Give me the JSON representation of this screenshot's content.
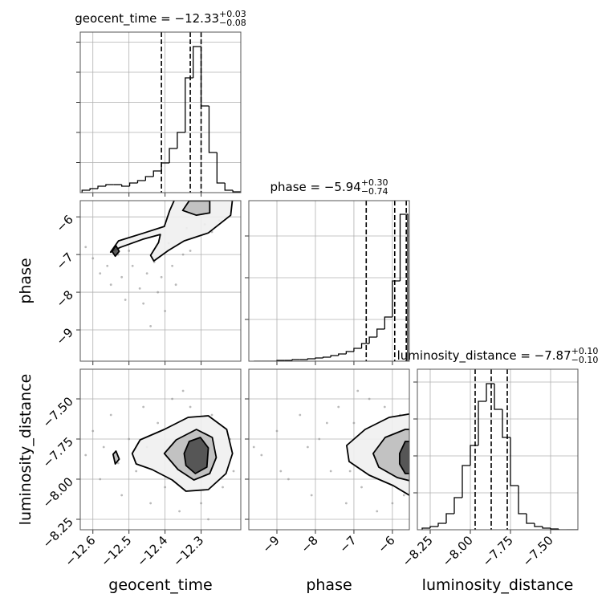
{
  "chart_data": [
    {
      "type": "histogram",
      "title": {
        "text": "geocent_time = −12.33",
        "upper": "+0.03",
        "lower": "−0.08"
      },
      "bins": [
        -12.63,
        -12.608,
        -12.586,
        -12.564,
        -12.542,
        -12.52,
        -12.498,
        -12.476,
        -12.454,
        -12.432,
        -12.41,
        -12.388,
        -12.366,
        -12.344,
        -12.322,
        -12.3,
        -12.278,
        -12.256,
        -12.234,
        -12.212,
        -12.19
      ],
      "values": [
        3,
        5,
        8,
        10,
        10,
        8,
        12,
        15,
        20,
        27,
        37,
        55,
        75,
        143,
        182,
        108,
        50,
        12,
        3,
        1
      ],
      "quantiles": [
        -12.41,
        -12.33,
        -12.3
      ],
      "xlim": [
        -12.635,
        -12.19
      ],
      "xticks": [
        -12.6,
        -12.5,
        -12.4,
        -12.3
      ],
      "ylim": [
        0,
        200
      ],
      "yticks": [
        37.5,
        75,
        112.5,
        150,
        187.5
      ],
      "grid": true,
      "color": "#000000"
    },
    {
      "type": "scatter",
      "ylabel": "phase",
      "points": {
        "x": [
          -12.6,
          -12.58,
          -12.56,
          -12.55,
          -12.53,
          -12.52,
          -12.5,
          -12.49,
          -12.47,
          -12.46,
          -12.45,
          -12.43,
          -12.42,
          -12.41,
          -12.4,
          -12.38,
          -12.37,
          -12.35,
          -12.33,
          -12.31,
          -12.29,
          -12.27,
          -12.25,
          -12.62,
          -12.44,
          -12.39,
          -12.34,
          -12.51
        ],
        "y": [
          -7.1,
          -7.5,
          -7.3,
          -7.8,
          -7.0,
          -7.6,
          -6.9,
          -7.3,
          -7.9,
          -8.3,
          -7.5,
          -7.2,
          -8.0,
          -7.6,
          -8.5,
          -7.3,
          -7.8,
          -7.0,
          -6.9,
          -6.5,
          -6.2,
          -6.4,
          -6.1,
          -6.8,
          -8.9,
          -6.7,
          -6.3,
          -8.2
        ]
      },
      "contours": [
        {
          "x": [
            -12.551,
            -12.529,
            -12.458,
            -12.402,
            -12.387,
            -12.373,
            -12.213,
            -12.218,
            -12.28,
            -12.347,
            -12.391,
            -12.431,
            -12.44,
            -12.418,
            -12.413,
            -12.462,
            -12.524
          ],
          "y": [
            -6.936,
            -6.638,
            -6.426,
            -6.255,
            -5.83,
            -5.532,
            -5.532,
            -5.957,
            -6.426,
            -6.638,
            -6.894,
            -7.17,
            -7.021,
            -6.681,
            -6.468,
            -6.596,
            -6.809
          ]
        },
        {
          "x": [
            -12.351,
            -12.333,
            -12.276,
            -12.276,
            -12.313
          ],
          "y": [
            -5.83,
            -5.574,
            -5.574,
            -5.894,
            -5.957
          ]
        },
        {
          "x": [
            -12.547,
            -12.536,
            -12.527,
            -12.538
          ],
          "y": [
            -6.915,
            -6.766,
            -6.915,
            -7.043
          ]
        }
      ],
      "xlim": [
        -12.635,
        -12.19
      ],
      "xticks": [
        -12.6,
        -12.5,
        -12.4,
        -12.3
      ],
      "ylim": [
        -9.83,
        -5.57
      ],
      "yticks": [
        {
          "value": -9,
          "label": "−9"
        },
        {
          "value": -8,
          "label": "−8"
        },
        {
          "value": -7,
          "label": "−7"
        },
        {
          "value": -6,
          "label": "−6"
        }
      ],
      "grid": true,
      "color": "#8c8c8c"
    },
    {
      "type": "histogram",
      "title": {
        "text": "phase = −5.94",
        "upper": "+0.30",
        "lower": "−0.74"
      },
      "bins": [
        -9.6,
        -9.4,
        -9.2,
        -9.0,
        -8.8,
        -8.6,
        -8.4,
        -8.2,
        -8.0,
        -7.8,
        -7.6,
        -7.4,
        -7.2,
        -7.0,
        -6.8,
        -6.6,
        -6.4,
        -6.2,
        -6.0,
        -5.8,
        -5.6
      ],
      "values": [
        0,
        0,
        0,
        1,
        1,
        2,
        2,
        3,
        4,
        5,
        7,
        9,
        12,
        16,
        22,
        30,
        40,
        55,
        100,
        183
      ],
      "quantiles": [
        -6.68,
        -5.94,
        -5.64
      ],
      "xlim": [
        -9.73,
        -5.56
      ],
      "xticks": [
        -9,
        -8,
        -7,
        -6
      ],
      "ylim": [
        0,
        200
      ],
      "yticks": [
        52,
        104,
        156
      ],
      "grid": true,
      "color": "#000000"
    },
    {
      "type": "scatter",
      "xlabel": "geocent_time",
      "ylabel": "luminosity_distance",
      "points": {
        "x": [
          -12.62,
          -12.6,
          -12.58,
          -12.55,
          -12.52,
          -12.5,
          -12.48,
          -12.46,
          -12.44,
          -12.42,
          -12.4,
          -12.38,
          -12.36,
          -12.33,
          -12.3,
          -12.27,
          -12.24,
          -12.22,
          -12.21,
          -12.57,
          -12.53,
          -12.45,
          -12.35,
          -12.28
        ],
        "y": [
          -7.85,
          -7.7,
          -8.0,
          -7.6,
          -8.1,
          -7.75,
          -7.95,
          -7.55,
          -8.15,
          -7.65,
          -8.05,
          -7.5,
          -8.2,
          -7.55,
          -8.15,
          -7.6,
          -8.05,
          -7.75,
          -7.95,
          -7.8,
          -7.9,
          -7.8,
          -7.45,
          -8.25
        ]
      },
      "contours": [
        {
          "x": [
            -12.491,
            -12.469,
            -12.402,
            -12.336,
            -12.28,
            -12.229,
            -12.213,
            -12.231,
            -12.28,
            -12.342,
            -12.38,
            -12.436,
            -12.48
          ],
          "y": [
            -7.84,
            -7.755,
            -7.69,
            -7.615,
            -7.605,
            -7.69,
            -7.84,
            -7.965,
            -8.065,
            -8.075,
            -8.005,
            -7.94,
            -7.905
          ]
        },
        {
          "x": [
            -12.402,
            -12.369,
            -12.313,
            -12.269,
            -12.258,
            -12.276,
            -12.32,
            -12.364
          ],
          "y": [
            -7.84,
            -7.755,
            -7.69,
            -7.74,
            -7.865,
            -7.965,
            -8.005,
            -7.94
          ]
        },
        {
          "x": [
            -12.347,
            -12.333,
            -12.302,
            -12.28,
            -12.284,
            -12.316,
            -12.342
          ],
          "y": [
            -7.84,
            -7.765,
            -7.74,
            -7.805,
            -7.925,
            -7.965,
            -7.915
          ]
        },
        {
          "x": [
            -12.544,
            -12.536,
            -12.527,
            -12.538
          ],
          "y": [
            -7.845,
            -7.825,
            -7.875,
            -7.905
          ]
        }
      ],
      "xlim": [
        -12.635,
        -12.19
      ],
      "xticks": [
        {
          "value": -12.6,
          "label": "−12.6"
        },
        {
          "value": -12.5,
          "label": "−12.5"
        },
        {
          "value": -12.4,
          "label": "−12.4"
        },
        {
          "value": -12.3,
          "label": "−12.3"
        }
      ],
      "ylim": [
        -8.315,
        -7.315
      ],
      "yticks": [
        {
          "value": -8.25,
          "label": "−8.25"
        },
        {
          "value": -8.0,
          "label": "−8.00"
        },
        {
          "value": -7.75,
          "label": "−7.75"
        },
        {
          "value": -7.5,
          "label": "−7.50"
        }
      ],
      "grid": true,
      "color": "#8c8c8c"
    },
    {
      "type": "scatter",
      "xlabel": "phase",
      "points": {
        "x": [
          -9.4,
          -9.0,
          -8.7,
          -8.4,
          -8.1,
          -7.9,
          -7.6,
          -7.4,
          -7.2,
          -7.0,
          -6.8,
          -6.6,
          -6.4,
          -6.2,
          -6.0,
          -5.8,
          -5.7,
          -8.9,
          -8.2,
          -7.7,
          -7.1,
          -6.9,
          -9.6
        ],
        "y": [
          -7.85,
          -7.7,
          -8.0,
          -7.6,
          -8.1,
          -7.75,
          -7.95,
          -7.55,
          -8.15,
          -7.65,
          -8.05,
          -7.5,
          -8.2,
          -7.55,
          -8.15,
          -7.6,
          -8.1,
          -7.95,
          -7.8,
          -7.65,
          -7.95,
          -7.45,
          -7.8
        ]
      },
      "contours": [
        {
          "x": [
            -7.188,
            -6.708,
            -6.083,
            -5.458,
            -5.458,
            -5.979,
            -6.604,
            -7.125
          ],
          "y": [
            -7.79,
            -7.69,
            -7.615,
            -7.59,
            -8.115,
            -8.04,
            -7.975,
            -7.89
          ]
        },
        {
          "x": [
            -6.5,
            -6.188,
            -5.667,
            -5.458,
            -5.458,
            -5.875,
            -6.354
          ],
          "y": [
            -7.84,
            -7.74,
            -7.69,
            -7.69,
            -8.015,
            -7.99,
            -7.925
          ]
        },
        {
          "x": [
            -5.813,
            -5.667,
            -5.458,
            -5.458,
            -5.667,
            -5.813
          ],
          "y": [
            -7.84,
            -7.765,
            -7.765,
            -7.965,
            -7.965,
            -7.905
          ]
        }
      ],
      "xlim": [
        -9.73,
        -5.56
      ],
      "xticks": [
        {
          "value": -9,
          "label": "−9"
        },
        {
          "value": -8,
          "label": "−8"
        },
        {
          "value": -7,
          "label": "−7"
        },
        {
          "value": -6,
          "label": "−6"
        }
      ],
      "ylim": [
        -8.315,
        -7.315
      ],
      "yticks": [
        -8.25,
        -8.0,
        -7.75,
        -7.5
      ],
      "grid": true,
      "color": "#8c8c8c"
    },
    {
      "type": "histogram",
      "xlabel": "luminosity_distance",
      "title": {
        "text": "luminosity_distance = −7.87",
        "upper": "+0.10",
        "lower": "−0.10"
      },
      "bins": [
        -8.3,
        -8.25,
        -8.2,
        -8.15,
        -8.1,
        -8.05,
        -8.0,
        -7.95,
        -7.9,
        -7.85,
        -7.8,
        -7.75,
        -7.7,
        -7.65,
        -7.6,
        -7.55,
        -7.5,
        -7.45,
        -7.4,
        -7.35,
        -7.3
      ],
      "values": [
        2,
        4,
        8,
        20,
        40,
        80,
        105,
        160,
        182,
        150,
        115,
        55,
        20,
        8,
        4,
        2,
        1,
        0,
        0,
        0
      ],
      "quantiles": [
        -7.97,
        -7.87,
        -7.77
      ],
      "xlim": [
        -8.33,
        -7.33
      ],
      "xticks": [
        {
          "value": -8.25,
          "label": "−8.25"
        },
        {
          "value": -8.0,
          "label": "−8.00"
        },
        {
          "value": -7.75,
          "label": "−7.75"
        },
        {
          "value": -7.5,
          "label": "−7.50"
        }
      ],
      "ylim": [
        0,
        200
      ],
      "yticks": [
        46,
        92,
        138,
        184
      ],
      "grid": true,
      "color": "#000000"
    }
  ]
}
